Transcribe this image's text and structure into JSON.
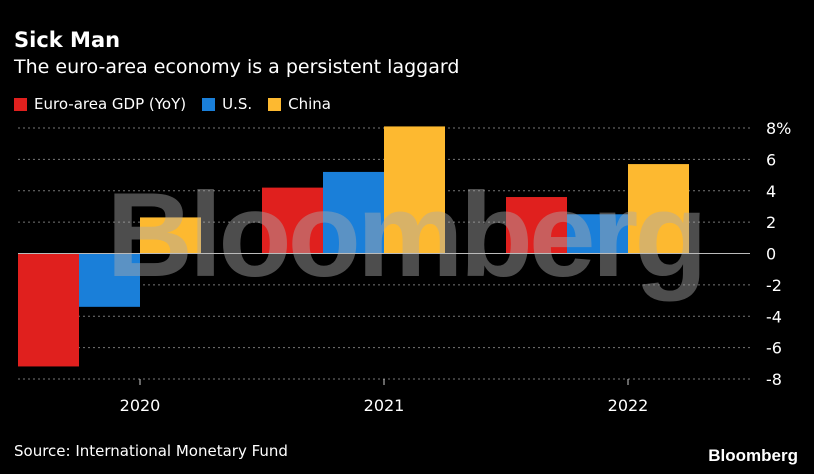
{
  "title": "Sick Man",
  "subtitle": "The euro-area economy is a persistent laggard",
  "source": "Source: International Monetary Fund",
  "brand": "Bloomberg",
  "watermark": "Bloomberg",
  "colors": {
    "euro": "#e0201e",
    "us": "#1a7fd9",
    "china": "#fdb930",
    "grid": "#777777",
    "zero": "#bbbbbb"
  },
  "chart_data": {
    "type": "bar",
    "title": "Sick Man",
    "subtitle": "The euro-area economy is a persistent laggard",
    "xlabel": "",
    "ylabel": "",
    "categories": [
      "2020",
      "2021",
      "2022"
    ],
    "series": [
      {
        "name": "Euro-area GDP (YoY)",
        "color": "#e0201e",
        "values": [
          -7.2,
          4.2,
          3.6
        ]
      },
      {
        "name": "U.S.",
        "color": "#1a7fd9",
        "values": [
          -3.4,
          5.2,
          2.5
        ]
      },
      {
        "name": "China",
        "color": "#fdb930",
        "values": [
          2.3,
          8.1,
          5.7
        ]
      }
    ],
    "ylim": [
      -8,
      8
    ],
    "yticks": [
      8,
      6,
      4,
      2,
      0,
      -2,
      -4,
      -6,
      -8
    ],
    "ytick_labels": [
      "8%",
      "6",
      "4",
      "2",
      "0",
      "-2",
      "-4",
      "-6",
      "-8"
    ],
    "legend_position": "top-left",
    "grid": true
  }
}
